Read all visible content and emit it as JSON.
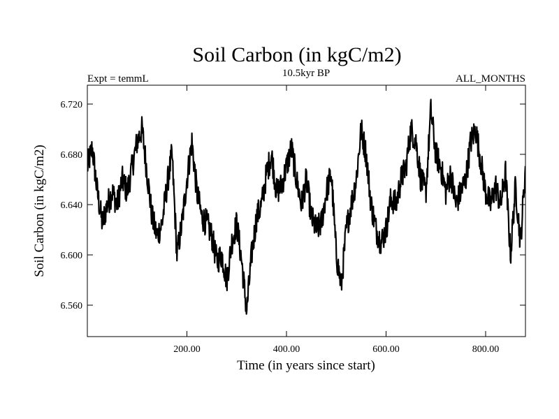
{
  "chart_data": {
    "type": "line",
    "title": "Soil Carbon (in kgC/m2)",
    "subtitle_left": "Expt = temmL",
    "subtitle_center": "10.5kyr BP",
    "subtitle_right": "ALL_MONTHS",
    "xlabel": "Time (in years since start)",
    "ylabel": "Soil Carbon (in kgC/m2)",
    "xlim": [
      0,
      880
    ],
    "ylim": [
      6.535,
      6.735
    ],
    "xticks": [
      {
        "value": 200,
        "label": "200.00"
      },
      {
        "value": 400,
        "label": "400.00"
      },
      {
        "value": 600,
        "label": "600.00"
      },
      {
        "value": 800,
        "label": "800.00"
      }
    ],
    "yticks": [
      {
        "value": 6.56,
        "label": "6.560"
      },
      {
        "value": 6.6,
        "label": "6.600"
      },
      {
        "value": 6.64,
        "label": "6.640"
      },
      {
        "value": 6.68,
        "label": "6.680"
      },
      {
        "value": 6.72,
        "label": "6.720"
      }
    ],
    "series": [
      {
        "name": "Soil Carbon",
        "x": [
          0,
          10,
          20,
          30,
          40,
          50,
          60,
          70,
          80,
          90,
          100,
          110,
          120,
          130,
          140,
          150,
          160,
          170,
          180,
          190,
          200,
          210,
          220,
          230,
          240,
          250,
          260,
          270,
          280,
          290,
          300,
          310,
          320,
          330,
          340,
          350,
          360,
          370,
          380,
          390,
          400,
          410,
          420,
          430,
          440,
          450,
          460,
          470,
          480,
          490,
          500,
          510,
          520,
          530,
          540,
          550,
          560,
          570,
          580,
          590,
          600,
          610,
          620,
          630,
          640,
          650,
          660,
          670,
          680,
          690,
          700,
          710,
          720,
          730,
          740,
          750,
          760,
          770,
          780,
          790,
          800,
          810,
          820,
          830,
          840,
          850,
          860,
          870,
          880
        ],
        "values": [
          6.67,
          6.685,
          6.65,
          6.625,
          6.64,
          6.65,
          6.64,
          6.66,
          6.65,
          6.67,
          6.69,
          6.7,
          6.665,
          6.63,
          6.615,
          6.625,
          6.655,
          6.68,
          6.6,
          6.625,
          6.66,
          6.69,
          6.65,
          6.63,
          6.625,
          6.615,
          6.595,
          6.6,
          6.58,
          6.61,
          6.625,
          6.595,
          6.555,
          6.6,
          6.63,
          6.64,
          6.665,
          6.68,
          6.65,
          6.655,
          6.67,
          6.685,
          6.66,
          6.64,
          6.66,
          6.63,
          6.62,
          6.625,
          6.65,
          6.665,
          6.6,
          6.575,
          6.62,
          6.64,
          6.66,
          6.7,
          6.68,
          6.64,
          6.62,
          6.61,
          6.62,
          6.645,
          6.64,
          6.66,
          6.67,
          6.7,
          6.69,
          6.66,
          6.65,
          6.715,
          6.68,
          6.67,
          6.65,
          6.665,
          6.64,
          6.65,
          6.66,
          6.69,
          6.7,
          6.675,
          6.65,
          6.64,
          6.655,
          6.64,
          6.665,
          6.6,
          6.655,
          6.61,
          6.67
        ]
      }
    ]
  }
}
